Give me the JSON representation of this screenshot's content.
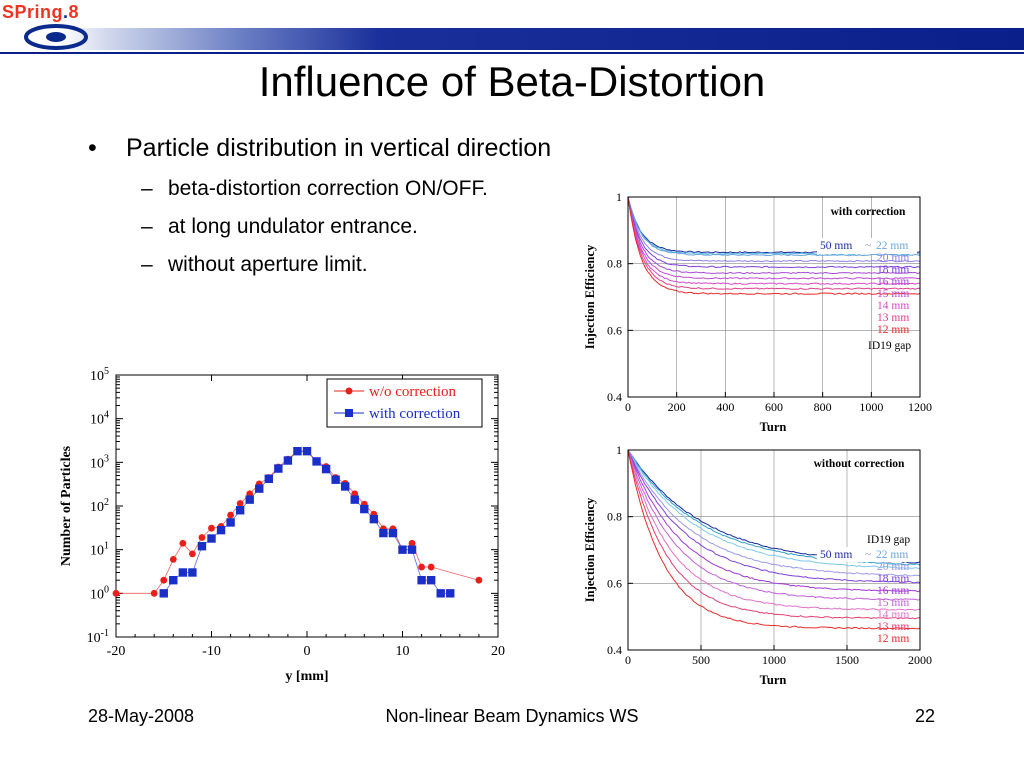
{
  "logo": {
    "text_a": "SPring",
    "text_b": ".",
    "text_c": "8"
  },
  "title": "Influence of Beta-Distortion",
  "bullets": {
    "main": "Particle distribution in vertical direction",
    "subs": [
      "beta-distortion correction ON/OFF.",
      "at long undulator entrance.",
      "without aperture limit."
    ],
    "bullet_mark": "•",
    "dash_mark": "–"
  },
  "footer": {
    "date": "28-May-2008",
    "event": "Non-linear Beam Dynamics WS",
    "page": "22"
  },
  "chart_data": [
    {
      "type": "scatter",
      "xlabel": "y [mm]",
      "ylabel": "Number of Particles",
      "xlim": [
        -20,
        20
      ],
      "ylim_log10": [
        -1,
        5
      ],
      "yscale": "log",
      "xticks": [
        "-20",
        "-10",
        "0",
        "10",
        "20"
      ],
      "yticks": [
        {
          "base": "10",
          "exp": "5"
        },
        {
          "base": "10",
          "exp": "4"
        },
        {
          "base": "10",
          "exp": "3"
        },
        {
          "base": "10",
          "exp": "2"
        },
        {
          "base": "10",
          "exp": "1"
        },
        {
          "base": "10",
          "exp": "0"
        },
        {
          "base": "10",
          "exp": "-1"
        }
      ],
      "legend_position": "top-right",
      "series": [
        {
          "name": "w/o correction",
          "color": "#e8201b",
          "marker": "circle",
          "x": [
            -20,
            -16,
            -15,
            -14,
            -13,
            -12,
            -11,
            -10,
            -9,
            -8,
            -7,
            -6,
            -5,
            -4,
            -3,
            -2,
            -1,
            0,
            1,
            2,
            3,
            4,
            5,
            6,
            7,
            8,
            9,
            10,
            11,
            12,
            13,
            18
          ],
          "y": [
            1,
            1,
            2,
            6,
            14,
            8,
            19,
            31,
            34,
            62,
            114,
            190,
            320,
            450,
            780,
            1180,
            1800,
            1800,
            1050,
            800,
            450,
            330,
            190,
            110,
            65,
            30,
            30,
            10,
            14,
            4,
            4,
            2
          ]
        },
        {
          "name": "with correction",
          "color": "#1a2ec8",
          "marker": "square",
          "x": [
            -15,
            -14,
            -13,
            -12,
            -11,
            -10,
            -9,
            -8,
            -7,
            -6,
            -5,
            -4,
            -3,
            -2,
            -1,
            0,
            1,
            2,
            3,
            4,
            5,
            6,
            7,
            8,
            9,
            10,
            11,
            12,
            13,
            14,
            15
          ],
          "y": [
            1,
            2,
            3,
            3,
            12,
            18,
            28,
            42,
            80,
            140,
            250,
            420,
            720,
            1100,
            1800,
            1800,
            1050,
            700,
            400,
            280,
            140,
            85,
            50,
            24,
            24,
            10,
            10,
            2,
            2,
            1,
            1
          ]
        }
      ]
    },
    {
      "type": "line",
      "title": "with correction",
      "xlabel": "Turn",
      "ylabel": "Injection Efficiency",
      "xlim": [
        0,
        1200
      ],
      "ylim": [
        0.4,
        1
      ],
      "xticks": [
        "0",
        "200",
        "400",
        "600",
        "800",
        "1000",
        "1200"
      ],
      "yticks": [
        "1",
        "0.8",
        "0.6",
        "0.4"
      ],
      "legend_position": "right",
      "legend_range": {
        "from": "50 mm",
        "sep": "~",
        "to": "22 mm"
      },
      "legend_title": "ID19 gap",
      "series": [
        {
          "name": "50 mm",
          "color": "#1a2a9a",
          "final": 0.834,
          "shape": 55
        },
        {
          "name": "",
          "color": "#4fb0e0",
          "final": 0.83,
          "shape": 55
        },
        {
          "name": "22 mm",
          "color": "#6aa7dc",
          "final": 0.826,
          "shape": 55
        },
        {
          "name": "20 mm",
          "color": "#8c82e6",
          "final": 0.808,
          "shape": 55
        },
        {
          "name": "18 mm",
          "color": "#8040d8",
          "final": 0.79,
          "shape": 55
        },
        {
          "name": "16 mm",
          "color": "#a64ad6",
          "final": 0.772,
          "shape": 55
        },
        {
          "name": "15 mm",
          "color": "#c04ad4",
          "final": 0.756,
          "shape": 55
        },
        {
          "name": "14 mm",
          "color": "#d94ac8",
          "final": 0.74,
          "shape": 55
        },
        {
          "name": "13 mm",
          "color": "#e0408c",
          "final": 0.725,
          "shape": 55
        },
        {
          "name": "12 mm",
          "color": "#e82a2a",
          "final": 0.71,
          "shape": 55
        }
      ]
    },
    {
      "type": "line",
      "title": "without correction",
      "xlabel": "Turn",
      "ylabel": "Injection Efficiency",
      "xlim": [
        0,
        2000
      ],
      "ylim": [
        0.4,
        1
      ],
      "xticks": [
        "0",
        "500",
        "1000",
        "1500",
        "2000"
      ],
      "yticks": [
        "1",
        "0.8",
        "0.6",
        "0.4"
      ],
      "legend_position": "right",
      "legend_range": {
        "from": "50 mm",
        "sep": "~",
        "to": "22 mm"
      },
      "legend_title": "ID19 gap",
      "series": [
        {
          "name": "50 mm",
          "color": "#1a2a9a",
          "final": 0.655,
          "shape": 520
        },
        {
          "name": "",
          "color": "#2ea0cc",
          "final": 0.65,
          "shape": 500
        },
        {
          "name": "22 mm",
          "color": "#7fc8ec",
          "final": 0.64,
          "shape": 470
        },
        {
          "name": "20 mm",
          "color": "#9a9ae6",
          "final": 0.62,
          "shape": 430
        },
        {
          "name": "18 mm",
          "color": "#8040d8",
          "final": 0.6,
          "shape": 400
        },
        {
          "name": "16 mm",
          "color": "#a03ad6",
          "final": 0.575,
          "shape": 360
        },
        {
          "name": "15 mm",
          "color": "#c060d8",
          "final": 0.55,
          "shape": 330
        },
        {
          "name": "14 mm",
          "color": "#e070c8",
          "final": 0.52,
          "shape": 300
        },
        {
          "name": "13 mm",
          "color": "#e04070",
          "final": 0.495,
          "shape": 270
        },
        {
          "name": "12 mm",
          "color": "#e82a2a",
          "final": 0.465,
          "shape": 240
        }
      ]
    }
  ]
}
